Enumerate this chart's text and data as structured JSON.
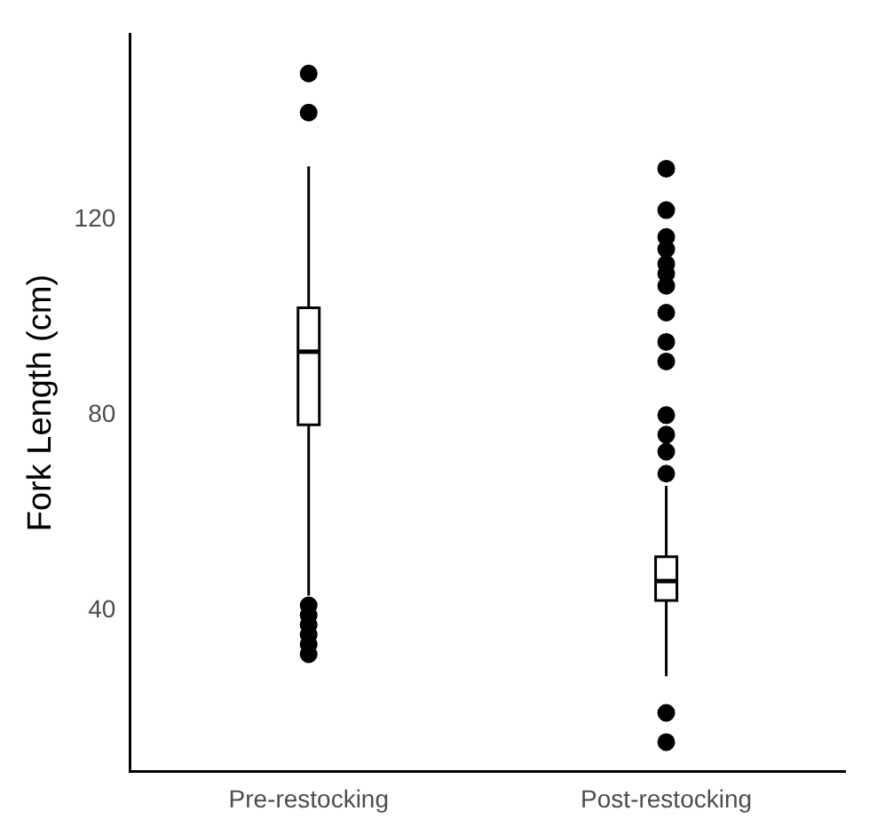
{
  "chart_data": {
    "type": "box",
    "ylabel": "Fork Length (cm)",
    "categories": [
      "Pre-restocking",
      "Post-restocking"
    ],
    "boxes": [
      {
        "low": 43,
        "q1": 78,
        "median": 93,
        "q3": 102,
        "high": 131,
        "outliers": [
          150,
          142,
          41,
          39,
          37,
          35,
          33,
          31
        ]
      },
      {
        "low": 26.5,
        "q1": 42,
        "median": 46,
        "q3": 51,
        "high": 65.5,
        "outliers": [
          130.5,
          122,
          116.5,
          114,
          111,
          109,
          106.5,
          101,
          95,
          91,
          80,
          76,
          72.5,
          68,
          19,
          13
        ]
      }
    ],
    "ylim": [
      7,
      158
    ],
    "yticks": [
      40,
      80,
      120
    ],
    "grid": false,
    "legend": false
  }
}
